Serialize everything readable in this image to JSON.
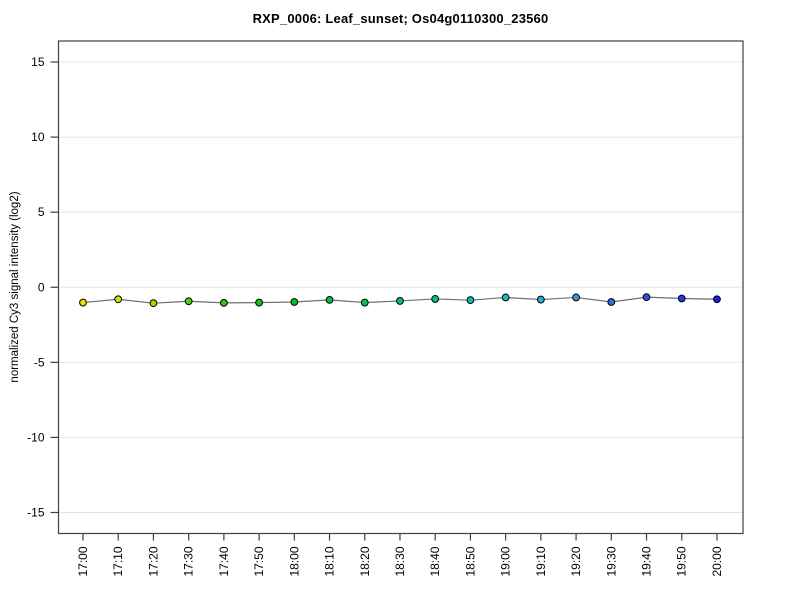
{
  "chart_data": {
    "type": "line",
    "title": "RXP_0006: Leaf_sunset; Os04g0110300_23560",
    "xlabel": "",
    "ylabel": "normalized Cy3 signal intensity (log2)",
    "categories": [
      "17:00",
      "17:10",
      "17:20",
      "17:30",
      "17:40",
      "17:50",
      "18:00",
      "18:10",
      "18:20",
      "18:30",
      "18:40",
      "18:50",
      "19:00",
      "19:10",
      "19:20",
      "19:30",
      "19:40",
      "19:50",
      "20:00"
    ],
    "y_ticks": [
      -15,
      -10,
      -5,
      0,
      5,
      10,
      15
    ],
    "ylim": [
      -16.4,
      16.4
    ],
    "grid": "horizontal-only",
    "legend": "none",
    "series": [
      {
        "name": "normalized Cy3 signal intensity (log2)",
        "values": [
          -1.02,
          -0.8,
          -1.06,
          -0.93,
          -1.04,
          -1.02,
          -0.98,
          -0.84,
          -1.02,
          -0.91,
          -0.78,
          -0.86,
          -0.68,
          -0.82,
          -0.68,
          -0.98,
          -0.66,
          -0.75,
          -0.8
        ],
        "point_colors": [
          "#e5e600",
          "#d4e000",
          "#abd600",
          "#55cd00",
          "#2fc800",
          "#13c509",
          "#00c41f",
          "#00c43e",
          "#00c45c",
          "#00c478",
          "#00c492",
          "#00c4ac",
          "#12bccb",
          "#2caade",
          "#3b92e2",
          "#2e6ce8",
          "#2a50ee",
          "#2338f0",
          "#1d1de0"
        ],
        "line_color": "#6e6e6e",
        "marker": "circle"
      }
    ],
    "colors": {
      "axis": "#3f3f3f",
      "grid": "#e4e4e4",
      "marker_outline": "#000000",
      "text": "#000000",
      "background": "#ffffff"
    }
  }
}
